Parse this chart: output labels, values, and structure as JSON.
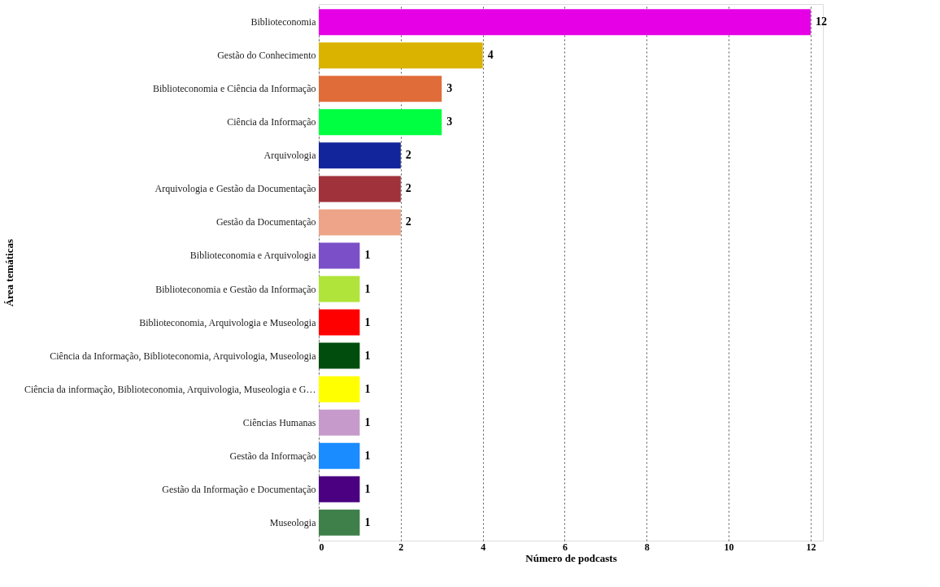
{
  "chart_data": {
    "type": "bar",
    "orientation": "horizontal",
    "xlabel": "Número de podcasts",
    "ylabel": "Área temáticas",
    "categories": [
      "Biblioteconomia",
      "Gestão do Conhecimento",
      "Biblioteconomia e Ciência da Informação",
      "Ciência da Informação",
      "Arquivologia",
      "Arquivologia e Gestão da Documentação",
      "Gestão da Documentação",
      "Biblioteconomia e Arquivologia",
      "Biblioteconomia e Gestão da Informação",
      "Biblioteconomia, Arquivologia e Museologia",
      "Ciência da Informação, Biblioteconomia, Arquivologia, Museologia",
      "Ciência da informação, Biblioteconomia, Arquivologia, Museologia e G…",
      "Ciências Humanas",
      "Gestão da Informação",
      "Gestão da Informação e Documentação",
      "Museologia"
    ],
    "values": [
      12,
      4,
      3,
      3,
      2,
      2,
      2,
      1,
      1,
      1,
      1,
      1,
      1,
      1,
      1,
      1
    ],
    "colors": [
      "#e600e6",
      "#d9b300",
      "#e06c3a",
      "#00ff40",
      "#12259a",
      "#a0323c",
      "#eda488",
      "#7a4fc7",
      "#b0e43a",
      "#ff0000",
      "#004d0d",
      "#ffff00",
      "#c69bcb",
      "#1a8cff",
      "#4a0080",
      "#3f7f4a"
    ],
    "xlim": [
      0,
      12.3
    ],
    "xticks": [
      0,
      2,
      4,
      6,
      8,
      10,
      12
    ],
    "grid": "x",
    "data_labels": true
  }
}
